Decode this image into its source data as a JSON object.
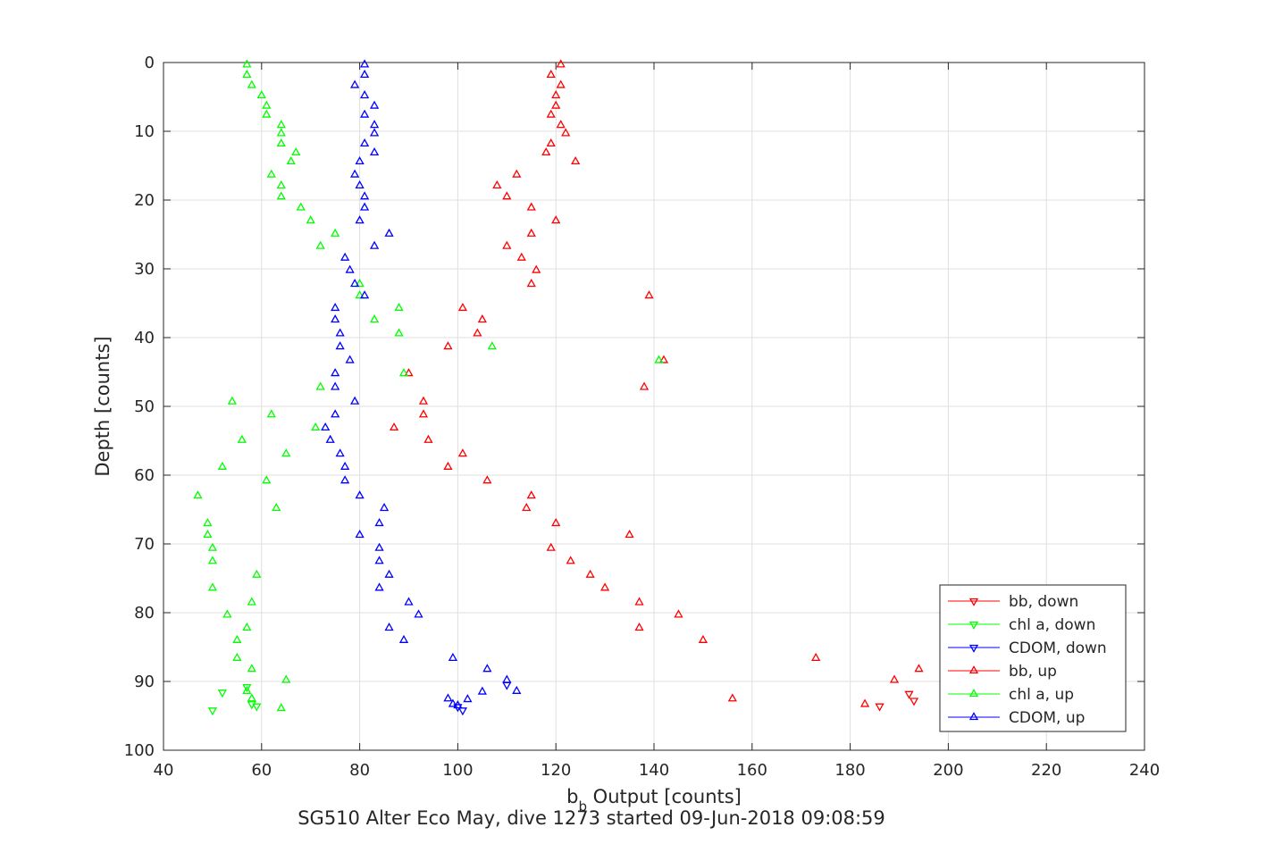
{
  "chart_data": {
    "type": "scatter",
    "title": "SG510 Alter Eco May, dive 1273 started 09-Jun-2018 09:08:59",
    "xlabel_main": "b",
    "xlabel_sub": "b",
    "xlabel_rest": " Output [counts]",
    "ylabel": "Depth [counts]",
    "xlim": [
      40,
      240
    ],
    "ylim": [
      0,
      100
    ],
    "y_reversed": true,
    "grid": true,
    "legend_placement": "bottom-right",
    "xticks": [
      40,
      60,
      80,
      100,
      120,
      140,
      160,
      180,
      200,
      220,
      240
    ],
    "yticks": [
      0,
      10,
      20,
      30,
      40,
      50,
      60,
      70,
      80,
      90,
      100
    ],
    "series": [
      {
        "name": "bb, down",
        "color": "#ff0000",
        "marker": "triangle-down",
        "points": [
          [
            186,
            93.6
          ],
          [
            192,
            91.8
          ],
          [
            193,
            92.8
          ]
        ]
      },
      {
        "name": "chl a, down",
        "color": "#00ff00",
        "marker": "triangle-down",
        "points": [
          [
            50,
            94.2
          ],
          [
            52,
            91.6
          ],
          [
            57,
            90.8
          ],
          [
            58,
            93.3
          ],
          [
            59,
            93.6
          ]
        ]
      },
      {
        "name": "CDOM, down",
        "color": "#0000ff",
        "marker": "triangle-down",
        "points": [
          [
            100,
            93.7
          ],
          [
            101,
            94.2
          ],
          [
            110,
            90.5
          ]
        ]
      },
      {
        "name": "bb, up",
        "color": "#ff0000",
        "marker": "triangle-up",
        "points": [
          [
            121,
            0.3
          ],
          [
            119,
            1.8
          ],
          [
            121,
            3.3
          ],
          [
            120,
            4.8
          ],
          [
            120,
            6.3
          ],
          [
            119,
            7.6
          ],
          [
            121,
            9.1
          ],
          [
            122,
            10.3
          ],
          [
            119,
            11.8
          ],
          [
            118,
            13.1
          ],
          [
            124,
            14.4
          ],
          [
            112,
            16.3
          ],
          [
            108,
            17.9
          ],
          [
            110,
            19.5
          ],
          [
            115,
            21.1
          ],
          [
            120,
            23.0
          ],
          [
            115,
            24.9
          ],
          [
            110,
            26.7
          ],
          [
            113,
            28.4
          ],
          [
            116,
            30.2
          ],
          [
            115,
            32.2
          ],
          [
            139,
            33.9
          ],
          [
            101,
            35.7
          ],
          [
            105,
            37.4
          ],
          [
            104,
            39.4
          ],
          [
            98,
            41.3
          ],
          [
            142,
            43.3
          ],
          [
            90,
            45.2
          ],
          [
            138,
            47.2
          ],
          [
            93,
            49.3
          ],
          [
            93,
            51.2
          ],
          [
            87,
            53.1
          ],
          [
            94,
            54.9
          ],
          [
            101,
            56.9
          ],
          [
            98,
            58.8
          ],
          [
            106,
            60.8
          ],
          [
            115,
            63.0
          ],
          [
            114,
            64.8
          ],
          [
            120,
            67.0
          ],
          [
            135,
            68.7
          ],
          [
            119,
            70.6
          ],
          [
            123,
            72.5
          ],
          [
            127,
            74.5
          ],
          [
            130,
            76.4
          ],
          [
            137,
            78.5
          ],
          [
            145,
            80.3
          ],
          [
            137,
            82.2
          ],
          [
            150,
            84.0
          ],
          [
            173,
            86.6
          ],
          [
            194,
            88.2
          ],
          [
            189,
            89.8
          ],
          [
            156,
            92.5
          ],
          [
            183,
            93.3
          ]
        ]
      },
      {
        "name": "chl a, up",
        "color": "#00ff00",
        "marker": "triangle-up",
        "points": [
          [
            57,
            0.3
          ],
          [
            57,
            1.8
          ],
          [
            58,
            3.3
          ],
          [
            60,
            4.8
          ],
          [
            61,
            6.3
          ],
          [
            61,
            7.6
          ],
          [
            64,
            9.1
          ],
          [
            64,
            10.3
          ],
          [
            64,
            11.8
          ],
          [
            67,
            13.1
          ],
          [
            66,
            14.4
          ],
          [
            62,
            16.3
          ],
          [
            64,
            17.9
          ],
          [
            64,
            19.5
          ],
          [
            68,
            21.1
          ],
          [
            70,
            23.0
          ],
          [
            75,
            24.9
          ],
          [
            72,
            26.7
          ],
          [
            80,
            32.2
          ],
          [
            80,
            33.9
          ],
          [
            88,
            35.7
          ],
          [
            83,
            37.4
          ],
          [
            88,
            39.4
          ],
          [
            107,
            41.3
          ],
          [
            141,
            43.3
          ],
          [
            89,
            45.2
          ],
          [
            72,
            47.2
          ],
          [
            54,
            49.3
          ],
          [
            62,
            51.2
          ],
          [
            71,
            53.1
          ],
          [
            56,
            54.9
          ],
          [
            65,
            56.9
          ],
          [
            52,
            58.8
          ],
          [
            61,
            60.8
          ],
          [
            47,
            63.0
          ],
          [
            63,
            64.8
          ],
          [
            49,
            67.0
          ],
          [
            49,
            68.7
          ],
          [
            50,
            70.6
          ],
          [
            50,
            72.5
          ],
          [
            59,
            74.5
          ],
          [
            50,
            76.4
          ],
          [
            58,
            78.5
          ],
          [
            53,
            80.3
          ],
          [
            57,
            82.2
          ],
          [
            55,
            84.0
          ],
          [
            55,
            86.6
          ],
          [
            58,
            88.2
          ],
          [
            65,
            89.8
          ],
          [
            57,
            91.4
          ],
          [
            58,
            92.5
          ],
          [
            64,
            93.9
          ]
        ]
      },
      {
        "name": "CDOM, up",
        "color": "#0000ff",
        "marker": "triangle-up",
        "points": [
          [
            81,
            0.3
          ],
          [
            81,
            1.8
          ],
          [
            79,
            3.3
          ],
          [
            81,
            4.8
          ],
          [
            83,
            6.3
          ],
          [
            81,
            7.6
          ],
          [
            83,
            9.1
          ],
          [
            83,
            10.3
          ],
          [
            81,
            11.8
          ],
          [
            83,
            13.1
          ],
          [
            80,
            14.4
          ],
          [
            79,
            16.3
          ],
          [
            80,
            17.9
          ],
          [
            81,
            19.5
          ],
          [
            81,
            21.1
          ],
          [
            80,
            23.0
          ],
          [
            86,
            24.9
          ],
          [
            83,
            26.7
          ],
          [
            77,
            28.4
          ],
          [
            78,
            30.2
          ],
          [
            79,
            32.2
          ],
          [
            81,
            33.9
          ],
          [
            75,
            35.7
          ],
          [
            75,
            37.4
          ],
          [
            76,
            39.4
          ],
          [
            76,
            41.3
          ],
          [
            78,
            43.3
          ],
          [
            75,
            45.2
          ],
          [
            75,
            47.2
          ],
          [
            79,
            49.3
          ],
          [
            75,
            51.2
          ],
          [
            73,
            53.1
          ],
          [
            74,
            54.9
          ],
          [
            76,
            56.9
          ],
          [
            77,
            58.8
          ],
          [
            77,
            60.8
          ],
          [
            80,
            63.0
          ],
          [
            85,
            64.8
          ],
          [
            84,
            67.0
          ],
          [
            80,
            68.7
          ],
          [
            84,
            70.6
          ],
          [
            84,
            72.5
          ],
          [
            86,
            74.5
          ],
          [
            84,
            76.4
          ],
          [
            90,
            78.5
          ],
          [
            92,
            80.3
          ],
          [
            86,
            82.2
          ],
          [
            89,
            84.0
          ],
          [
            99,
            86.6
          ],
          [
            106,
            88.2
          ],
          [
            110,
            89.8
          ],
          [
            112,
            91.4
          ],
          [
            105,
            91.5
          ],
          [
            102,
            92.6
          ],
          [
            98,
            92.5
          ],
          [
            99,
            93.3
          ],
          [
            100,
            93.5
          ]
        ]
      }
    ]
  }
}
